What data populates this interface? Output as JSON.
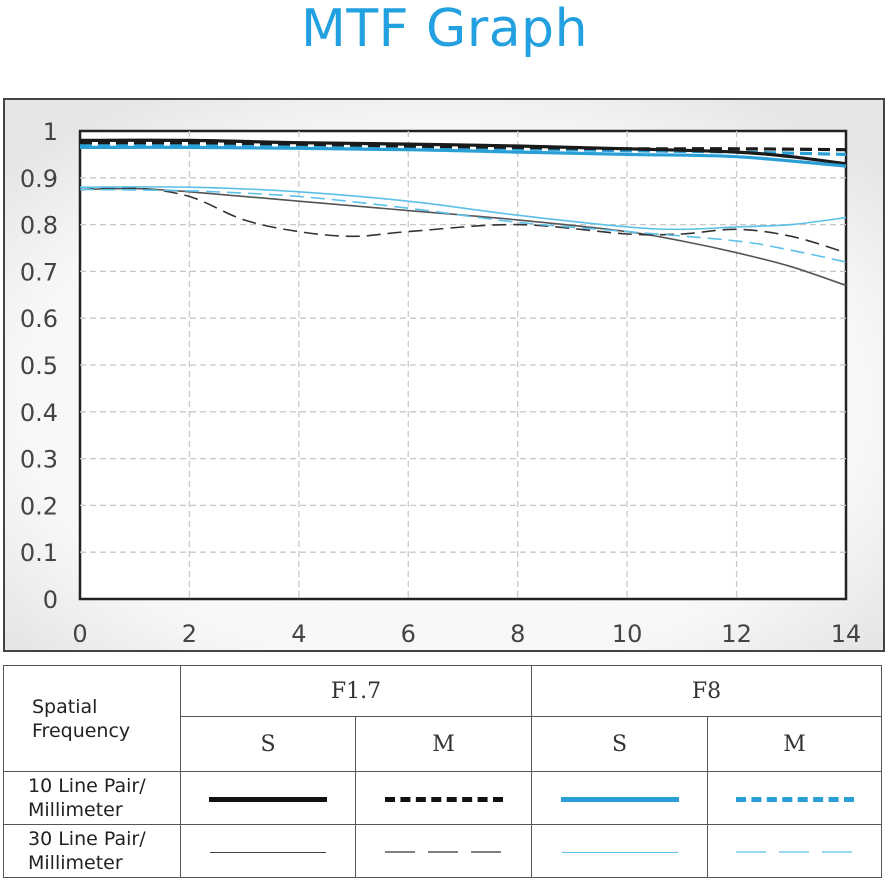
{
  "title": "MTF Graph",
  "colors": {
    "black_line": "#1a1a1a",
    "gray_line": "#555555",
    "blue_line": "#2a9fd6",
    "light_blue_line": "#5cc0e8",
    "title_blue": "#22a0e0"
  },
  "chart_data": {
    "type": "line",
    "title": "MTF Graph",
    "xlabel": "",
    "ylabel": "",
    "xlim": [
      0,
      14
    ],
    "ylim": [
      0,
      1
    ],
    "xticks": [
      "0",
      "2",
      "4",
      "6",
      "8",
      "10",
      "12",
      "14"
    ],
    "yticks": [
      "0",
      "0.1",
      "0.2",
      "0.3",
      "0.4",
      "0.5",
      "0.6",
      "0.7",
      "0.8",
      "0.9",
      "1"
    ],
    "grid": true,
    "series": [
      {
        "name": "F1.7 S 10 Line Pair/Millimeter",
        "color": "#1a1a1a",
        "style": "solid",
        "weight": "thick",
        "x": [
          0,
          2,
          4,
          6,
          8,
          10,
          12,
          13,
          14
        ],
        "y": [
          0.98,
          0.98,
          0.975,
          0.972,
          0.968,
          0.962,
          0.955,
          0.945,
          0.93
        ]
      },
      {
        "name": "F1.7 M 10 Line Pair/Millimeter",
        "color": "#1a1a1a",
        "style": "dashed",
        "weight": "thick",
        "x": [
          0,
          2,
          4,
          6,
          8,
          10,
          12,
          14
        ],
        "y": [
          0.975,
          0.975,
          0.972,
          0.968,
          0.965,
          0.962,
          0.962,
          0.96
        ]
      },
      {
        "name": "F8 S 10 Line Pair/Millimeter",
        "color": "#2a9fd6",
        "style": "solid",
        "weight": "thick",
        "x": [
          0,
          2,
          4,
          6,
          8,
          10,
          12,
          14
        ],
        "y": [
          0.965,
          0.965,
          0.963,
          0.96,
          0.955,
          0.95,
          0.945,
          0.925
        ]
      },
      {
        "name": "F8 M 10 Line Pair/Millimeter",
        "color": "#2a9fd6",
        "style": "dashed",
        "weight": "thick",
        "x": [
          0,
          2,
          4,
          6,
          8,
          10,
          12,
          14
        ],
        "y": [
          0.97,
          0.97,
          0.968,
          0.965,
          0.962,
          0.958,
          0.955,
          0.95
        ]
      },
      {
        "name": "F1.7 S 30 Line Pair/Millimeter",
        "color": "#555555",
        "style": "solid",
        "weight": "thin",
        "x": [
          0,
          1,
          2,
          4,
          6,
          8,
          10,
          11,
          12,
          13,
          14
        ],
        "y": [
          0.875,
          0.877,
          0.87,
          0.85,
          0.83,
          0.81,
          0.785,
          0.765,
          0.74,
          0.71,
          0.67
        ]
      },
      {
        "name": "F1.7 M 30 Line Pair/Millimeter",
        "color": "#333333",
        "style": "dashed",
        "weight": "thin",
        "x": [
          0,
          1,
          2,
          3,
          4,
          5,
          6,
          8,
          10,
          11,
          12,
          13,
          14
        ],
        "y": [
          0.875,
          0.878,
          0.86,
          0.81,
          0.785,
          0.775,
          0.785,
          0.8,
          0.78,
          0.78,
          0.79,
          0.775,
          0.74
        ]
      },
      {
        "name": "F8 S 30 Line Pair/Millimeter",
        "color": "#5cc0e8",
        "style": "solid",
        "weight": "thin",
        "x": [
          0,
          2,
          4,
          6,
          8,
          10,
          11,
          12,
          13,
          14
        ],
        "y": [
          0.88,
          0.88,
          0.87,
          0.85,
          0.82,
          0.795,
          0.79,
          0.795,
          0.8,
          0.815
        ]
      },
      {
        "name": "F8 M 30 Line Pair/Millimeter",
        "color": "#5cc0e8",
        "style": "dashed",
        "weight": "thin",
        "x": [
          0,
          2,
          4,
          6,
          8,
          10,
          12,
          13,
          14
        ],
        "y": [
          0.875,
          0.872,
          0.86,
          0.835,
          0.805,
          0.785,
          0.765,
          0.745,
          0.72
        ]
      }
    ]
  },
  "legend": {
    "corner_label": "Spatial\nFrequency",
    "apertures": [
      "F1.7",
      "F8"
    ],
    "subheaders": [
      "S",
      "M",
      "S",
      "M"
    ],
    "rows": [
      {
        "label": "10 Line Pair/\nMillimeter"
      },
      {
        "label": "30 Line Pair/\nMillimeter"
      }
    ]
  }
}
